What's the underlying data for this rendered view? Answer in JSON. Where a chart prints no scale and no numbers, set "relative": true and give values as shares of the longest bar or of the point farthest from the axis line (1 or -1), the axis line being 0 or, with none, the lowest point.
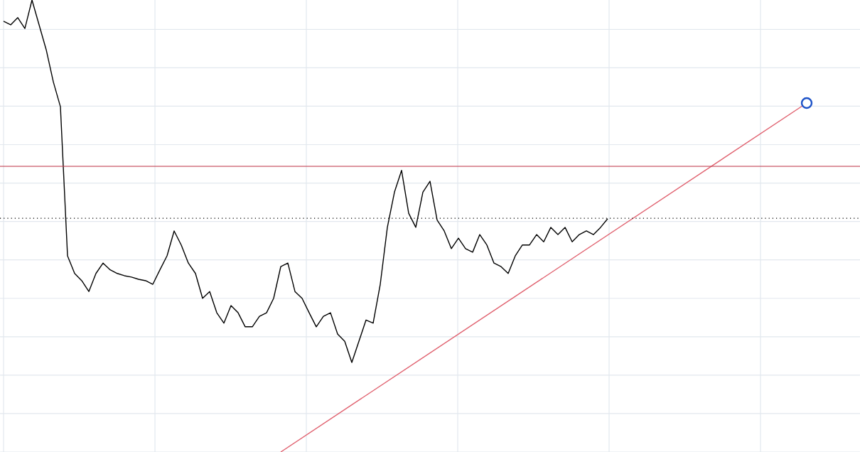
{
  "chart_data": {
    "type": "line",
    "relative": true,
    "grid": true,
    "categories": [
      null,
      null,
      null,
      null,
      null,
      null,
      null,
      null,
      null,
      null,
      null,
      null,
      null,
      null,
      null,
      null,
      null,
      null,
      null,
      null,
      null,
      null,
      null,
      null,
      null,
      null,
      null,
      null,
      null,
      null,
      null,
      null,
      null,
      null,
      null,
      null,
      null,
      null,
      null,
      null,
      null,
      null,
      null,
      null,
      null,
      null,
      null,
      null,
      null,
      null,
      null,
      null,
      null,
      null,
      null,
      null,
      null,
      null,
      null,
      null,
      null,
      null,
      null,
      null,
      null,
      null,
      null,
      null,
      null,
      null,
      null,
      null,
      null,
      null,
      null,
      null,
      null,
      null,
      null,
      null,
      null,
      null,
      null,
      null,
      null,
      null,
      null,
      null,
      null,
      null,
      null,
      null,
      null,
      null,
      null,
      null,
      null,
      null,
      null,
      null,
      null,
      null,
      null,
      null,
      null,
      null,
      null,
      null,
      null,
      null,
      null,
      null,
      null,
      null,
      null,
      null,
      null,
      null,
      null,
      null,
      null
    ],
    "series": [
      {
        "color": "#000000",
        "values": [
          0.953,
          0.945,
          0.961,
          0.937,
          1.0,
          0.945,
          0.89,
          0.819,
          0.764,
          0.434,
          0.395,
          0.379,
          0.355,
          0.395,
          0.418,
          0.403,
          0.395,
          0.39,
          0.387,
          0.382,
          0.379,
          0.371,
          0.403,
          0.434,
          0.489,
          0.458,
          0.418,
          0.395,
          0.34,
          0.355,
          0.308,
          0.285,
          0.324,
          0.308,
          0.277,
          0.277,
          0.3,
          0.308,
          0.34,
          0.41,
          0.418,
          0.355,
          0.34,
          0.308,
          0.277,
          0.3,
          0.308,
          0.261,
          0.245,
          0.198,
          0.245,
          0.292,
          0.285,
          0.371,
          0.497,
          0.575,
          0.623,
          0.528,
          0.497,
          0.575,
          0.599,
          0.513,
          0.489,
          0.45,
          0.473,
          0.45,
          0.442,
          0.481,
          0.458,
          0.418,
          0.41,
          0.395,
          0.434,
          0.458,
          0.458,
          0.481,
          0.465,
          0.497,
          0.481,
          0.497,
          0.465,
          0.481,
          0.489,
          0.481,
          0.497,
          0.516,
          null,
          null,
          null,
          null,
          null,
          null,
          null,
          null,
          null,
          null,
          null,
          null,
          null,
          null,
          null,
          null,
          null,
          null,
          null,
          null,
          null,
          null,
          null,
          null,
          null,
          null,
          null,
          null,
          null,
          null,
          null,
          null,
          null,
          null,
          null
        ]
      },
      {
        "type": "line",
        "color": "#e0606e",
        "marker": "circle",
        "values": [
          null,
          null,
          null,
          null,
          null,
          null,
          null,
          null,
          null,
          null,
          null,
          null,
          null,
          null,
          null,
          null,
          null,
          null,
          null,
          null,
          null,
          null,
          null,
          null,
          null,
          null,
          null,
          null,
          null,
          null,
          null,
          null,
          null,
          null,
          null,
          null,
          null,
          null,
          null,
          0,
          null,
          null,
          null,
          null,
          null,
          null,
          null,
          null,
          null,
          null,
          null,
          null,
          null,
          null,
          null,
          null,
          null,
          null,
          null,
          null,
          null,
          null,
          null,
          null,
          null,
          null,
          null,
          null,
          null,
          null,
          null,
          null,
          null,
          null,
          null,
          null,
          null,
          null,
          null,
          null,
          null,
          null,
          null,
          null,
          null,
          null,
          null,
          null,
          null,
          null,
          null,
          null,
          null,
          null,
          null,
          null,
          null,
          null,
          null,
          null,
          null,
          null,
          null,
          null,
          null,
          null,
          null,
          null,
          null,
          null,
          null,
          null,
          null,
          0.772,
          null,
          null,
          null,
          null,
          null,
          null,
          null
        ]
      }
    ],
    "ref_lines": [
      {
        "axis": "y",
        "value": 0.632,
        "color": "#c0394b",
        "line_style": "solid"
      },
      {
        "axis": "y",
        "value": 0.517,
        "color": "#000000",
        "line_style": "dotted"
      }
    ]
  }
}
